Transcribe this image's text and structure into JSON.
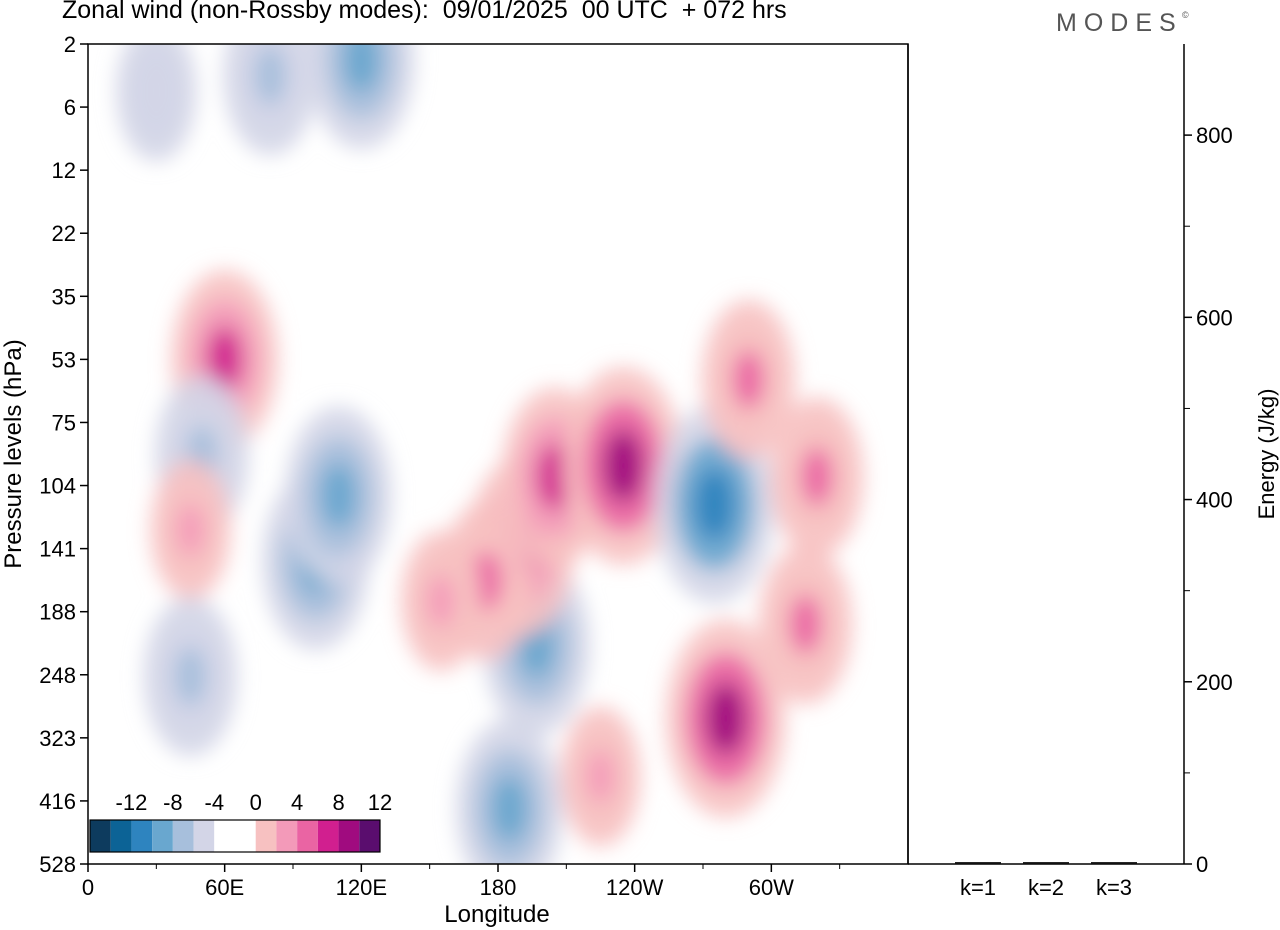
{
  "header": {
    "title": "Zonal wind (non-Rossby modes):  09/01/2025  00 UTC  + 072 hrs",
    "brand": "MODES",
    "brand_mark": "©"
  },
  "chart_data": [
    {
      "type": "heatmap",
      "title": "Zonal wind (non-Rossby modes):  09/01/2025  00 UTC  + 072 hrs",
      "xlabel": "Longitude",
      "ylabel": "Pressure levels (hPa)",
      "x_ticks": [
        "0",
        "60E",
        "120E",
        "180",
        "120W",
        "60W"
      ],
      "y_ticks": [
        "2",
        "6",
        "12",
        "22",
        "35",
        "53",
        "75",
        "104",
        "141",
        "188",
        "248",
        "323",
        "416",
        "528"
      ],
      "colorbar": {
        "labels": [
          "-12",
          "-8",
          "-4",
          "0",
          "4",
          "8",
          "12"
        ],
        "colors": [
          "#0d3b5e",
          "#0c6396",
          "#2e84bf",
          "#69a7cf",
          "#a7bfdc",
          "#d3d5e7",
          "#ffffff",
          "#ffffff",
          "#f7c1c1",
          "#f39ab9",
          "#ea64a3",
          "#d11f8f",
          "#a00b7f",
          "#5a0d6e"
        ]
      },
      "anomalies": [
        {
          "lon": 60,
          "p": 53,
          "v": 8
        },
        {
          "lon": 100,
          "p": 150,
          "v": -8
        },
        {
          "lon": 110,
          "p": 110,
          "v": -8
        },
        {
          "lon": 50,
          "p": 90,
          "v": -6
        },
        {
          "lon": 80,
          "p": 4,
          "v": -6
        },
        {
          "lon": 120,
          "p": 3,
          "v": -8
        },
        {
          "lon": 185,
          "p": 430,
          "v": -8
        },
        {
          "lon": 197,
          "p": 220,
          "v": -8
        },
        {
          "lon": 190,
          "p": 140,
          "v": 8
        },
        {
          "lon": 175,
          "p": 165,
          "v": 6
        },
        {
          "lon": 205,
          "p": 100,
          "v": 8
        },
        {
          "lon": 235,
          "p": 95,
          "v": 10
        },
        {
          "lon": 275,
          "p": 115,
          "v": -10
        },
        {
          "lon": 280,
          "p": 300,
          "v": 10
        },
        {
          "lon": 290,
          "p": 60,
          "v": 6
        },
        {
          "lon": 315,
          "p": 200,
          "v": 6
        },
        {
          "lon": 320,
          "p": 100,
          "v": 6
        },
        {
          "lon": 225,
          "p": 380,
          "v": 4
        },
        {
          "lon": 155,
          "p": 180,
          "v": 4
        },
        {
          "lon": 45,
          "p": 130,
          "v": 4
        },
        {
          "lon": 45,
          "p": 250,
          "v": -6
        },
        {
          "lon": 30,
          "p": 5,
          "v": -4
        }
      ]
    },
    {
      "type": "bar",
      "categories": [
        "k=1",
        "k=2",
        "k=3"
      ],
      "values": [
        1,
        1,
        1
      ],
      "ylabel": "Energy (J/kg)",
      "y_ticks": [
        "0",
        "200",
        "400",
        "600",
        "800"
      ],
      "ylim": [
        0,
        900
      ]
    }
  ]
}
